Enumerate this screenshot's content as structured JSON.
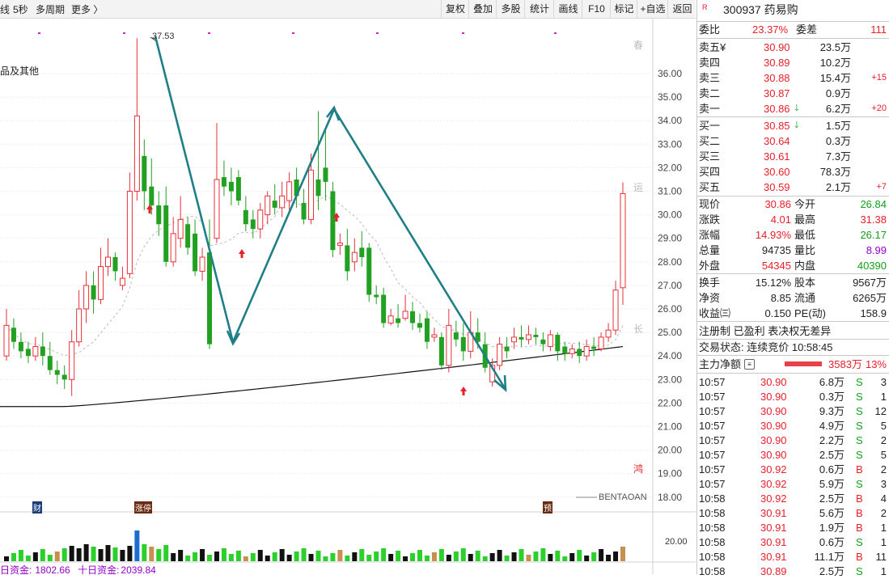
{
  "toolbar": {
    "left_partial": "线",
    "period": "5秒",
    "multi_period": "多周期",
    "more": "更多 〉",
    "buttons": [
      "复权",
      "叠加",
      "多股",
      "统计",
      "画线",
      "F10",
      "标记",
      "+自选",
      "返回"
    ]
  },
  "chart": {
    "high_label": "37.53",
    "legend_partial": "品及其他",
    "watermark": "BENTAOAN",
    "side_marks": [
      "春",
      "运",
      "长",
      "鸿"
    ],
    "events": [
      "财",
      "涨停",
      "预"
    ],
    "volume_scale": "20.00",
    "indicator_left_partial": "日资金:",
    "indicator_left_value": "1802.66",
    "indicator_right_label": "十日资金:",
    "indicator_right_value": "2039.84"
  },
  "chart_data": {
    "type": "candlestick",
    "y_ticks": [
      "36.00",
      "35.00",
      "34.00",
      "33.00",
      "32.00",
      "31.00",
      "30.00",
      "29.00",
      "28.00",
      "27.00",
      "26.00",
      "25.00",
      "24.00",
      "23.00",
      "22.00",
      "21.00",
      "20.00",
      "19.00",
      "18.00"
    ],
    "ylim": [
      17.5,
      37.8
    ],
    "annotated_high": 37.53,
    "candles": [
      [
        24.0,
        25.3,
        26.0,
        23.8
      ],
      [
        25.2,
        24.6,
        25.6,
        24.3
      ],
      [
        24.6,
        24.2,
        25.0,
        23.9
      ],
      [
        24.3,
        24.0,
        24.6,
        23.7
      ],
      [
        24.0,
        24.4,
        24.8,
        23.8
      ],
      [
        24.4,
        24.0,
        25.0,
        23.6
      ],
      [
        24.0,
        23.4,
        24.6,
        23.2
      ],
      [
        23.4,
        23.2,
        23.8,
        22.8
      ],
      [
        23.2,
        23.0,
        23.6,
        22.6
      ],
      [
        23.0,
        24.6,
        25.1,
        22.3
      ],
      [
        24.6,
        26.0,
        26.8,
        24.4
      ],
      [
        26.0,
        27.0,
        27.6,
        25.4
      ],
      [
        27.0,
        26.4,
        27.6,
        25.8
      ],
      [
        26.4,
        27.8,
        28.6,
        26.2
      ],
      [
        27.8,
        28.2,
        29.0,
        27.4
      ],
      [
        28.2,
        27.6,
        28.4,
        27.2
      ],
      [
        27.0,
        27.3,
        27.8,
        26.8
      ],
      [
        27.5,
        31.0,
        31.8,
        27.3
      ],
      [
        31.0,
        34.2,
        37.5,
        30.6
      ],
      [
        32.5,
        31.0,
        33.2,
        30.2
      ],
      [
        31.2,
        30.4,
        32.4,
        30.0
      ],
      [
        30.4,
        29.6,
        31.0,
        29.1
      ],
      [
        30.4,
        28.0,
        31.2,
        27.8
      ],
      [
        28.0,
        29.2,
        29.9,
        27.8
      ],
      [
        29.0,
        29.8,
        30.8,
        28.6
      ],
      [
        29.6,
        28.6,
        29.9,
        28.3
      ],
      [
        29.2,
        27.6,
        29.8,
        27.4
      ],
      [
        27.6,
        28.2,
        28.6,
        27.2
      ],
      [
        28.4,
        24.5,
        29.8,
        24.3
      ],
      [
        29.0,
        31.5,
        33.9,
        28.8
      ],
      [
        31.6,
        31.2,
        32.3,
        30.8
      ],
      [
        31.4,
        31.0,
        32.0,
        30.4
      ],
      [
        31.6,
        30.6,
        31.9,
        30.4
      ],
      [
        30.2,
        29.6,
        30.8,
        29.3
      ],
      [
        29.8,
        29.4,
        30.2,
        29.0
      ],
      [
        29.4,
        30.2,
        30.5,
        29.0
      ],
      [
        30.0,
        30.8,
        31.0,
        29.6
      ],
      [
        30.6,
        30.3,
        31.3,
        30.0
      ],
      [
        30.3,
        30.8,
        31.4,
        29.9
      ],
      [
        30.6,
        31.4,
        31.8,
        30.2
      ],
      [
        31.5,
        30.8,
        32.0,
        30.3
      ],
      [
        30.5,
        29.8,
        31.1,
        29.6
      ],
      [
        29.8,
        31.9,
        32.6,
        29.6
      ],
      [
        31.5,
        30.8,
        34.4,
        30.2
      ],
      [
        32.0,
        31.4,
        33.6,
        30.6
      ],
      [
        31.0,
        28.5,
        31.4,
        28.2
      ],
      [
        28.7,
        28.8,
        29.2,
        28.3
      ],
      [
        28.7,
        27.6,
        29.4,
        27.2
      ],
      [
        28.0,
        28.4,
        29.0,
        27.6
      ],
      [
        28.6,
        28.2,
        29.3,
        27.8
      ],
      [
        28.6,
        26.6,
        28.8,
        26.3
      ],
      [
        26.6,
        26.5,
        27.0,
        26.2
      ],
      [
        26.6,
        25.4,
        26.9,
        25.2
      ],
      [
        25.4,
        25.7,
        26.0,
        25.3
      ],
      [
        25.6,
        25.4,
        26.2,
        25.2
      ],
      [
        25.6,
        25.9,
        26.6,
        25.5
      ],
      [
        25.9,
        25.4,
        26.3,
        25.1
      ],
      [
        25.4,
        25.2,
        25.8,
        25.0
      ],
      [
        25.6,
        24.6,
        25.9,
        24.3
      ],
      [
        24.8,
        24.9,
        25.2,
        24.6
      ],
      [
        24.8,
        23.6,
        25.0,
        23.4
      ],
      [
        23.6,
        25.3,
        26.0,
        23.3
      ],
      [
        25.0,
        24.7,
        25.5,
        24.4
      ],
      [
        24.8,
        24.2,
        25.4,
        23.8
      ],
      [
        24.2,
        25.0,
        25.9,
        23.9
      ],
      [
        25.0,
        24.6,
        25.6,
        24.3
      ],
      [
        24.5,
        23.5,
        25.0,
        23.3
      ],
      [
        22.9,
        23.6,
        23.9,
        22.7
      ],
      [
        23.6,
        24.5,
        24.8,
        23.4
      ],
      [
        24.4,
        24.2,
        24.8,
        23.9
      ],
      [
        24.6,
        24.8,
        25.2,
        24.3
      ],
      [
        24.8,
        24.7,
        25.3,
        24.4
      ],
      [
        24.7,
        24.9,
        25.3,
        24.5
      ],
      [
        24.9,
        24.8,
        25.2,
        24.5
      ],
      [
        24.7,
        24.5,
        25.0,
        24.2
      ],
      [
        24.4,
        24.9,
        25.1,
        24.2
      ],
      [
        24.9,
        24.2,
        25.0,
        23.8
      ],
      [
        24.4,
        24.1,
        24.6,
        23.8
      ],
      [
        24.1,
        24.3,
        24.5,
        23.9
      ],
      [
        24.3,
        24.0,
        24.6,
        23.7
      ],
      [
        24.0,
        24.4,
        24.7,
        23.8
      ],
      [
        24.4,
        24.3,
        24.8,
        24.0
      ],
      [
        24.3,
        24.8,
        25.0,
        24.2
      ],
      [
        24.8,
        25.1,
        25.4,
        24.6
      ],
      [
        25.1,
        26.8,
        27.2,
        24.9
      ],
      [
        26.9,
        30.9,
        31.38,
        26.17
      ]
    ]
  },
  "quote": {
    "badge": "R",
    "code_name": "300937 药易购",
    "weibi_label": "委比",
    "weibi": "23.37%",
    "weicha_label": "委差",
    "weicha": "111",
    "asks": [
      {
        "label": "卖五¥",
        "price": "30.90",
        "vol": "23.5万",
        "chg": "",
        "arrow": ""
      },
      {
        "label": "卖四",
        "price": "30.89",
        "vol": "10.2万",
        "chg": "",
        "arrow": ""
      },
      {
        "label": "卖三",
        "price": "30.88",
        "vol": "15.4万",
        "chg": "+15",
        "arrow": ""
      },
      {
        "label": "卖二",
        "price": "30.87",
        "vol": "0.9万",
        "chg": "",
        "arrow": ""
      },
      {
        "label": "卖一",
        "price": "30.86",
        "vol": "6.2万",
        "chg": "+20",
        "arrow": "🡓"
      }
    ],
    "bids": [
      {
        "label": "买一",
        "price": "30.85",
        "vol": "1.5万",
        "chg": "",
        "arrow": "🡓"
      },
      {
        "label": "买二",
        "price": "30.64",
        "vol": "0.3万",
        "chg": "",
        "arrow": ""
      },
      {
        "label": "买三",
        "price": "30.61",
        "vol": "7.3万",
        "chg": "",
        "arrow": ""
      },
      {
        "label": "买四",
        "price": "30.60",
        "vol": "78.3万",
        "chg": "",
        "arrow": ""
      },
      {
        "label": "买五",
        "price": "30.59",
        "vol": "2.1万",
        "chg": "+7",
        "arrow": ""
      }
    ],
    "stats": [
      {
        "l1": "现价",
        "v1": "30.86",
        "c1": "red",
        "l2": "今开",
        "v2": "26.84",
        "c2": "green"
      },
      {
        "l1": "涨跌",
        "v1": "4.01",
        "c1": "red",
        "l2": "最高",
        "v2": "31.38",
        "c2": "red"
      },
      {
        "l1": "涨幅",
        "v1": "14.93%",
        "c1": "red",
        "l2": "最低",
        "v2": "26.17",
        "c2": "green"
      },
      {
        "l1": "总量",
        "v1": "94735",
        "c1": "blk",
        "l2": "量比",
        "v2": "8.99",
        "c2": "pur"
      },
      {
        "l1": "外盘",
        "v1": "54345",
        "c1": "red",
        "l2": "内盘",
        "v2": "40390",
        "c2": "green"
      }
    ],
    "fund": [
      {
        "l1": "换手",
        "v1": "15.12%",
        "l2": "股本",
        "v2": "9567万"
      },
      {
        "l1": "净资",
        "v1": "8.85",
        "l2": "流通",
        "v2": "6265万"
      },
      {
        "l1": "收益㈢",
        "v1": "0.150",
        "l2": "PE(动)",
        "v2": "158.9"
      }
    ],
    "tags": "注册制  已盈利  表决权无差异",
    "trade_status": "交易状态: 连续竞价  10:58:45",
    "main_flow_label": "主力净额",
    "main_flow_value": "3583万",
    "main_flow_pct": "13%",
    "ticks": [
      {
        "t": "10:57",
        "p": "30.90",
        "v": "6.8万",
        "s": "S",
        "n": "3"
      },
      {
        "t": "10:57",
        "p": "30.90",
        "v": "0.3万",
        "s": "S",
        "n": "1"
      },
      {
        "t": "10:57",
        "p": "30.90",
        "v": "9.3万",
        "s": "S",
        "n": "12"
      },
      {
        "t": "10:57",
        "p": "30.90",
        "v": "4.9万",
        "s": "S",
        "n": "5"
      },
      {
        "t": "10:57",
        "p": "30.90",
        "v": "2.2万",
        "s": "S",
        "n": "2"
      },
      {
        "t": "10:57",
        "p": "30.90",
        "v": "2.5万",
        "s": "S",
        "n": "5"
      },
      {
        "t": "10:57",
        "p": "30.92",
        "v": "0.6万",
        "s": "B",
        "n": "2"
      },
      {
        "t": "10:57",
        "p": "30.92",
        "v": "5.9万",
        "s": "S",
        "n": "3"
      },
      {
        "t": "10:58",
        "p": "30.92",
        "v": "2.5万",
        "s": "B",
        "n": "4"
      },
      {
        "t": "10:58",
        "p": "30.91",
        "v": "5.6万",
        "s": "B",
        "n": "2"
      },
      {
        "t": "10:58",
        "p": "30.91",
        "v": "1.9万",
        "s": "B",
        "n": "1"
      },
      {
        "t": "10:58",
        "p": "30.91",
        "v": "0.6万",
        "s": "S",
        "n": "1"
      },
      {
        "t": "10:58",
        "p": "30.91",
        "v": "11.1万",
        "s": "B",
        "n": "11"
      },
      {
        "t": "10:58",
        "p": "30.89",
        "v": "2.5万",
        "s": "S",
        "n": "1"
      }
    ]
  }
}
